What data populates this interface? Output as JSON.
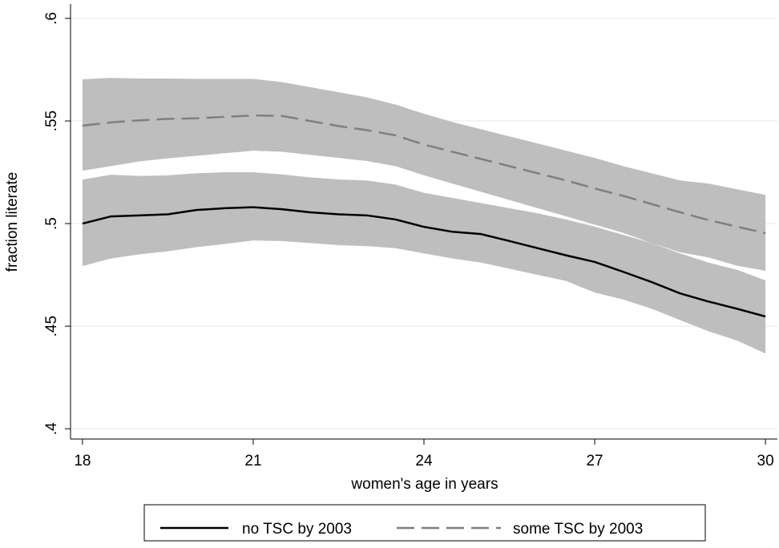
{
  "chart_data": {
    "type": "line",
    "x_label": "women's age in years",
    "y_label": "fraction literate",
    "x": [
      18,
      18.5,
      19,
      19.5,
      20,
      20.5,
      21,
      21.5,
      22,
      22.5,
      23,
      23.5,
      24,
      24.5,
      25,
      25.5,
      26,
      26.5,
      27,
      27.5,
      28,
      28.5,
      29,
      29.5,
      30
    ],
    "band_color": "#bebebe",
    "series": [
      {
        "name": "no TSC by 2003",
        "color": "#000000",
        "dash": "solid",
        "values": [
          0.5,
          0.5035,
          0.504,
          0.5045,
          0.5066,
          0.5075,
          0.508,
          0.507,
          0.5055,
          0.5045,
          0.504,
          0.502,
          0.4984,
          0.496,
          0.4949,
          0.4915,
          0.488,
          0.4845,
          0.4813,
          0.4765,
          0.4715,
          0.466,
          0.462,
          0.4585,
          0.4547
        ],
        "lower": [
          0.4793,
          0.483,
          0.485,
          0.4865,
          0.4885,
          0.49,
          0.4918,
          0.4915,
          0.4905,
          0.4895,
          0.489,
          0.488,
          0.4855,
          0.483,
          0.481,
          0.478,
          0.475,
          0.472,
          0.4664,
          0.463,
          0.4585,
          0.453,
          0.4475,
          0.443,
          0.4367
        ],
        "upper": [
          0.5215,
          0.5238,
          0.5232,
          0.5235,
          0.5245,
          0.525,
          0.525,
          0.524,
          0.5225,
          0.5215,
          0.521,
          0.519,
          0.515,
          0.5125,
          0.51,
          0.5075,
          0.505,
          0.502,
          0.4985,
          0.4945,
          0.4905,
          0.4855,
          0.481,
          0.4775,
          0.4723
        ]
      },
      {
        "name": "some TSC by 2003",
        "color": "#7f7f7f",
        "dash": "dashed",
        "values": [
          0.5477,
          0.5493,
          0.5503,
          0.551,
          0.5513,
          0.552,
          0.5527,
          0.5525,
          0.55,
          0.5475,
          0.5455,
          0.543,
          0.5385,
          0.535,
          0.5315,
          0.528,
          0.5245,
          0.521,
          0.5171,
          0.5135,
          0.5095,
          0.5055,
          0.5017,
          0.4985,
          0.4953
        ],
        "lower": [
          0.5258,
          0.528,
          0.5303,
          0.5318,
          0.533,
          0.5343,
          0.5355,
          0.535,
          0.5335,
          0.532,
          0.5305,
          0.528,
          0.5235,
          0.5195,
          0.5155,
          0.5115,
          0.5075,
          0.5035,
          0.4995,
          0.4955,
          0.4905,
          0.486,
          0.4835,
          0.4795,
          0.477
        ],
        "upper": [
          0.5703,
          0.571,
          0.5707,
          0.5707,
          0.5705,
          0.5705,
          0.5705,
          0.569,
          0.5665,
          0.564,
          0.5615,
          0.558,
          0.5535,
          0.5495,
          0.546,
          0.5425,
          0.539,
          0.5355,
          0.532,
          0.528,
          0.5245,
          0.521,
          0.5195,
          0.5167,
          0.514
        ]
      }
    ],
    "xlim": [
      17.79,
      30.21
    ],
    "xticks": [
      18,
      21,
      24,
      27,
      30
    ],
    "ylim": [
      0.395,
      0.607
    ],
    "yticks": [
      {
        "value": 0.4,
        "label": ".4"
      },
      {
        "value": 0.45,
        "label": ".45"
      },
      {
        "value": 0.5,
        "label": ".5"
      },
      {
        "value": 0.55,
        "label": ".55"
      },
      {
        "value": 0.6,
        "label": ".6"
      }
    ],
    "grid": true,
    "legend_position": "bottom"
  }
}
